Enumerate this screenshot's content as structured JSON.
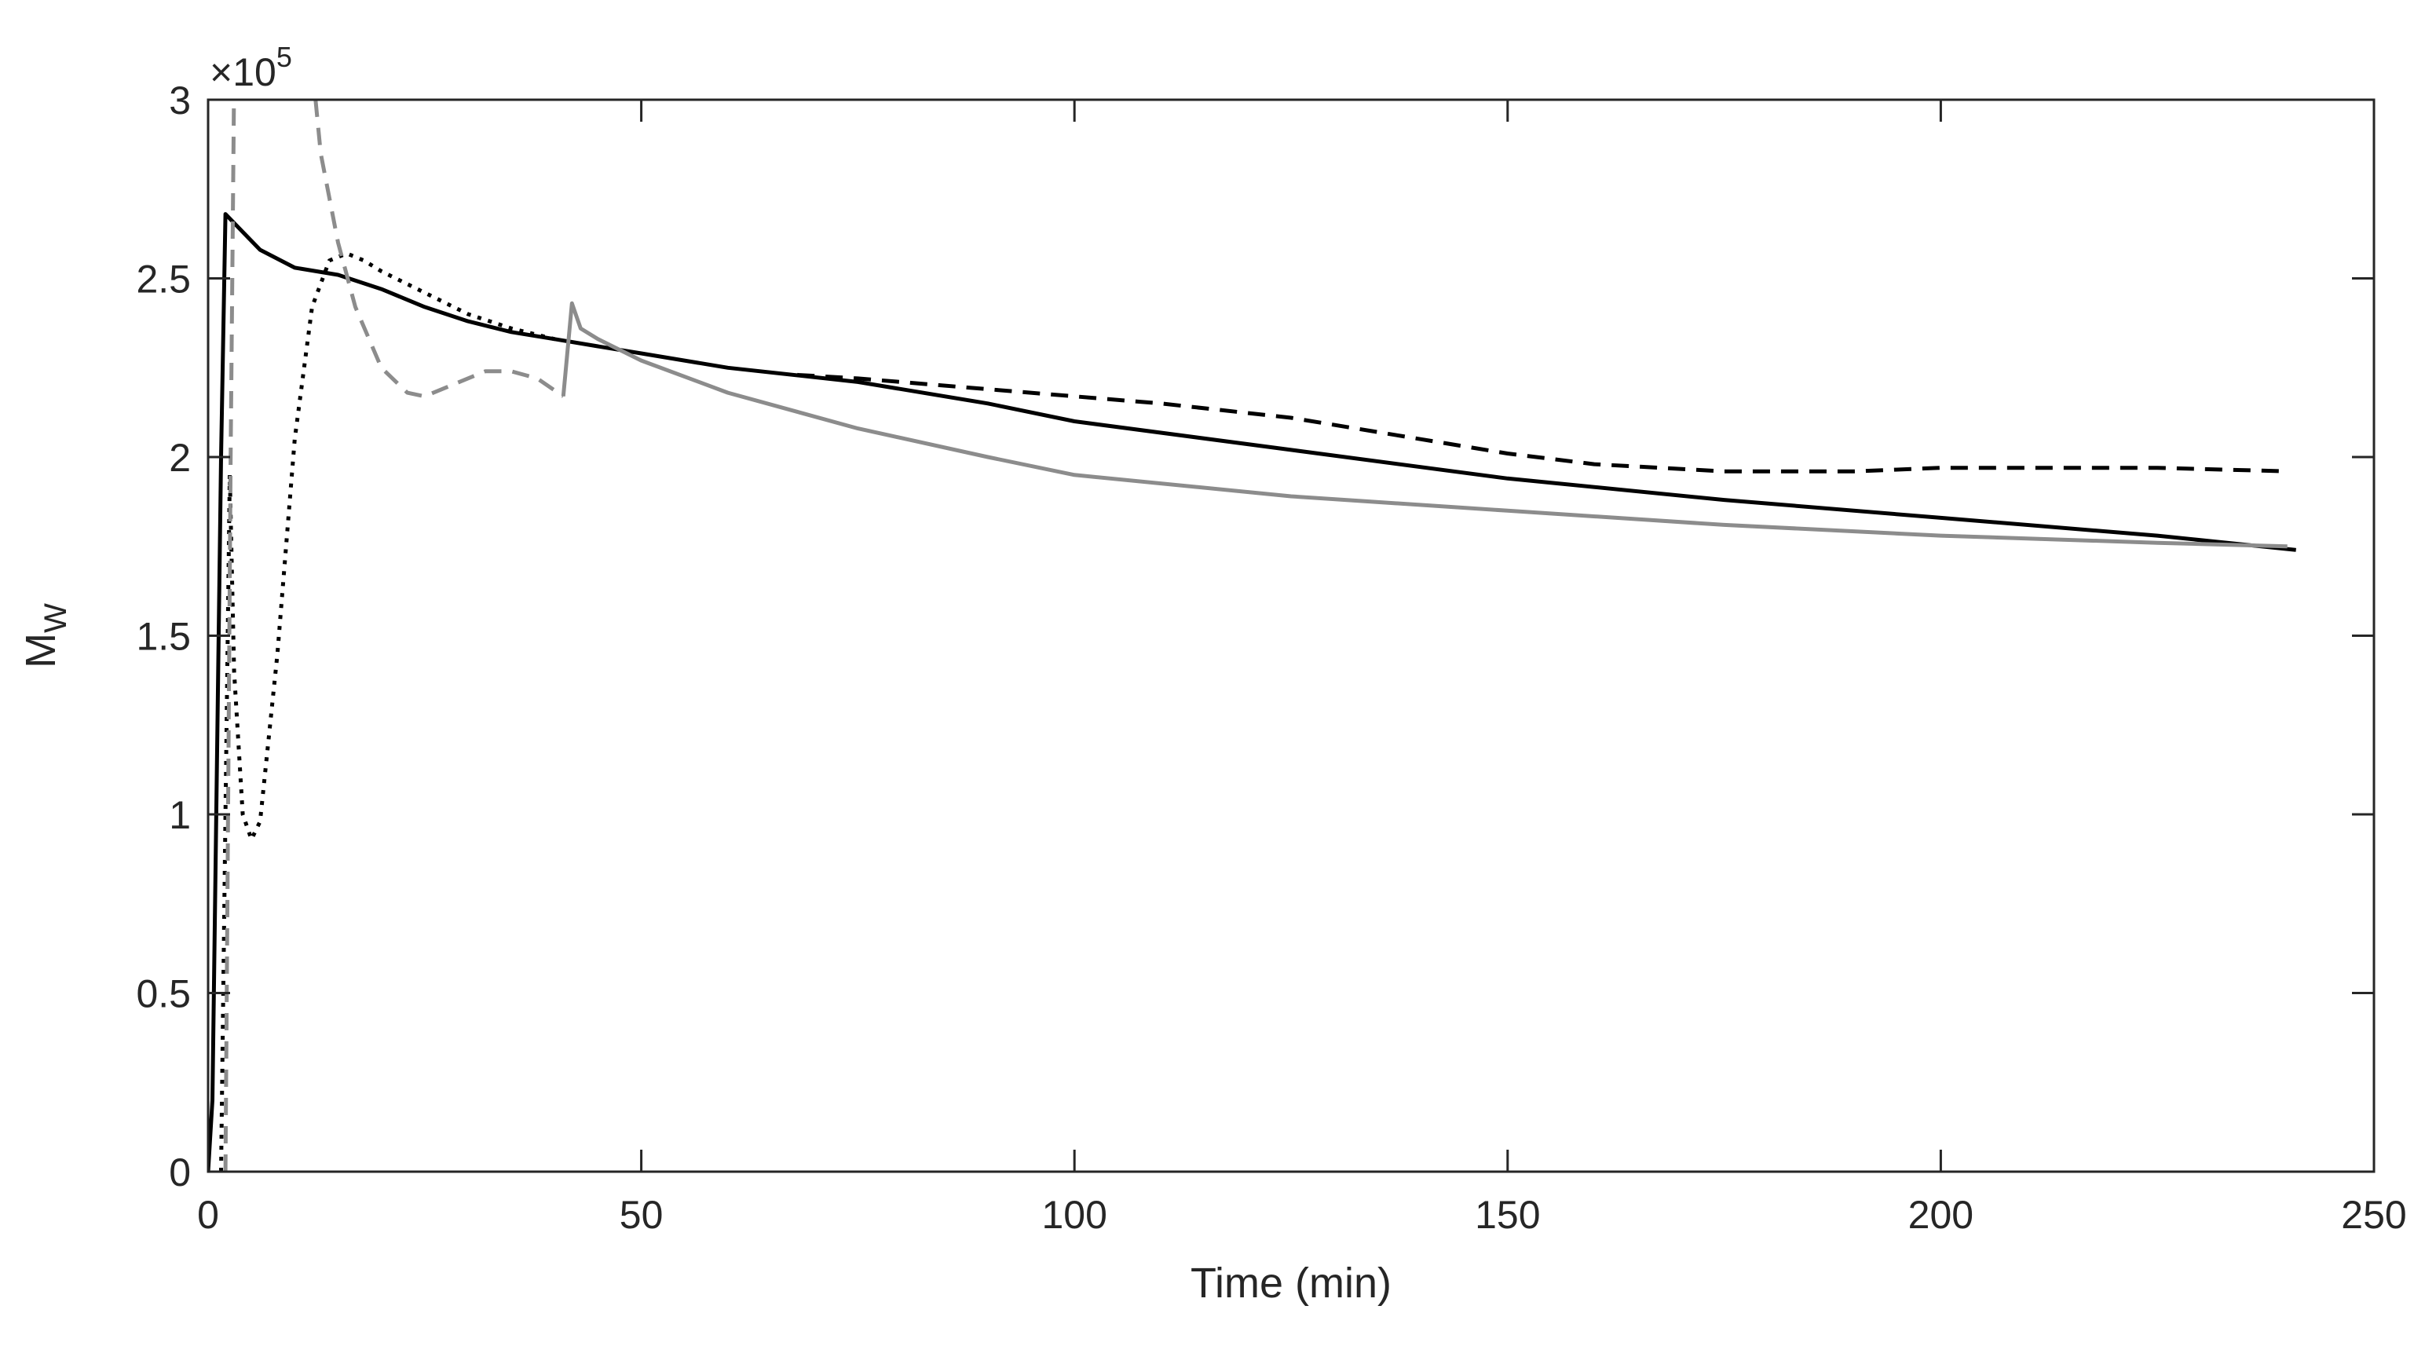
{
  "chart_data": {
    "type": "line",
    "title": "",
    "xlabel": "Time (min)",
    "ylabel": "M",
    "ylabel_subscript": "W",
    "y_multiplier": "×10",
    "y_multiplier_exponent": "5",
    "xlim": [
      0,
      250
    ],
    "ylim": [
      0,
      3
    ],
    "xticks": [
      0,
      50,
      100,
      150,
      200,
      250
    ],
    "xtick_labels": [
      "0",
      "50",
      "100",
      "150",
      "200",
      "250"
    ],
    "yticks": [
      0,
      0.5,
      1,
      1.5,
      2,
      2.5,
      3
    ],
    "ytick_labels": [
      "0",
      "0.5",
      "1",
      "1.5",
      "2",
      "2.5",
      "3"
    ],
    "grid": false,
    "legend": null,
    "series": [
      {
        "name": "black-solid",
        "color": "#000000",
        "style": "solid",
        "width": 5,
        "x": [
          0,
          0.5,
          1.5,
          2,
          4,
          6,
          10,
          15,
          20,
          25,
          30,
          35,
          40,
          45,
          50,
          60,
          75,
          90,
          100,
          125,
          150,
          175,
          200,
          225,
          241
        ],
        "y": [
          0,
          0.2,
          2.0,
          2.68,
          2.63,
          2.58,
          2.53,
          2.51,
          2.47,
          2.42,
          2.38,
          2.35,
          2.33,
          2.31,
          2.29,
          2.25,
          2.21,
          2.15,
          2.1,
          2.02,
          1.94,
          1.88,
          1.83,
          1.78,
          1.74
        ]
      },
      {
        "name": "black-dotted",
        "color": "#000000",
        "style": "dotted",
        "width": 5,
        "x": [
          1.5,
          2,
          2.5,
          3,
          4,
          5,
          6,
          8,
          10,
          12,
          14,
          16,
          18,
          20,
          25,
          30,
          35,
          40
        ],
        "y": [
          0,
          1.0,
          1.95,
          1.4,
          1.0,
          0.93,
          0.98,
          1.45,
          2.05,
          2.42,
          2.55,
          2.57,
          2.55,
          2.52,
          2.46,
          2.4,
          2.36,
          2.33
        ]
      },
      {
        "name": "gray-dashed",
        "color": "#8c8c8c",
        "style": "dashed",
        "width": 5,
        "x": [
          2,
          2.6,
          3.0,
          12.2,
          13,
          15,
          17,
          20,
          23,
          25,
          28,
          32,
          35,
          38,
          41
        ],
        "y": [
          0,
          2.0,
          3.05,
          3.05,
          2.85,
          2.6,
          2.42,
          2.25,
          2.18,
          2.17,
          2.2,
          2.24,
          2.24,
          2.22,
          2.17
        ]
      },
      {
        "name": "gray-solid",
        "color": "#8c8c8c",
        "style": "solid",
        "width": 5,
        "x": [
          41,
          42,
          43,
          45,
          50,
          60,
          75,
          90,
          100,
          125,
          150,
          175,
          200,
          225,
          240
        ],
        "y": [
          2.17,
          2.43,
          2.36,
          2.33,
          2.27,
          2.18,
          2.08,
          2.0,
          1.95,
          1.89,
          1.85,
          1.81,
          1.78,
          1.76,
          1.75
        ]
      },
      {
        "name": "black-dashed",
        "color": "#000000",
        "style": "dashed",
        "width": 5,
        "x": [
          68,
          75,
          90,
          100,
          110,
          125,
          140,
          150,
          160,
          175,
          190,
          200,
          215,
          225,
          240
        ],
        "y": [
          2.23,
          2.22,
          2.19,
          2.17,
          2.15,
          2.11,
          2.05,
          2.01,
          1.98,
          1.96,
          1.96,
          1.97,
          1.97,
          1.97,
          1.96
        ]
      }
    ]
  }
}
